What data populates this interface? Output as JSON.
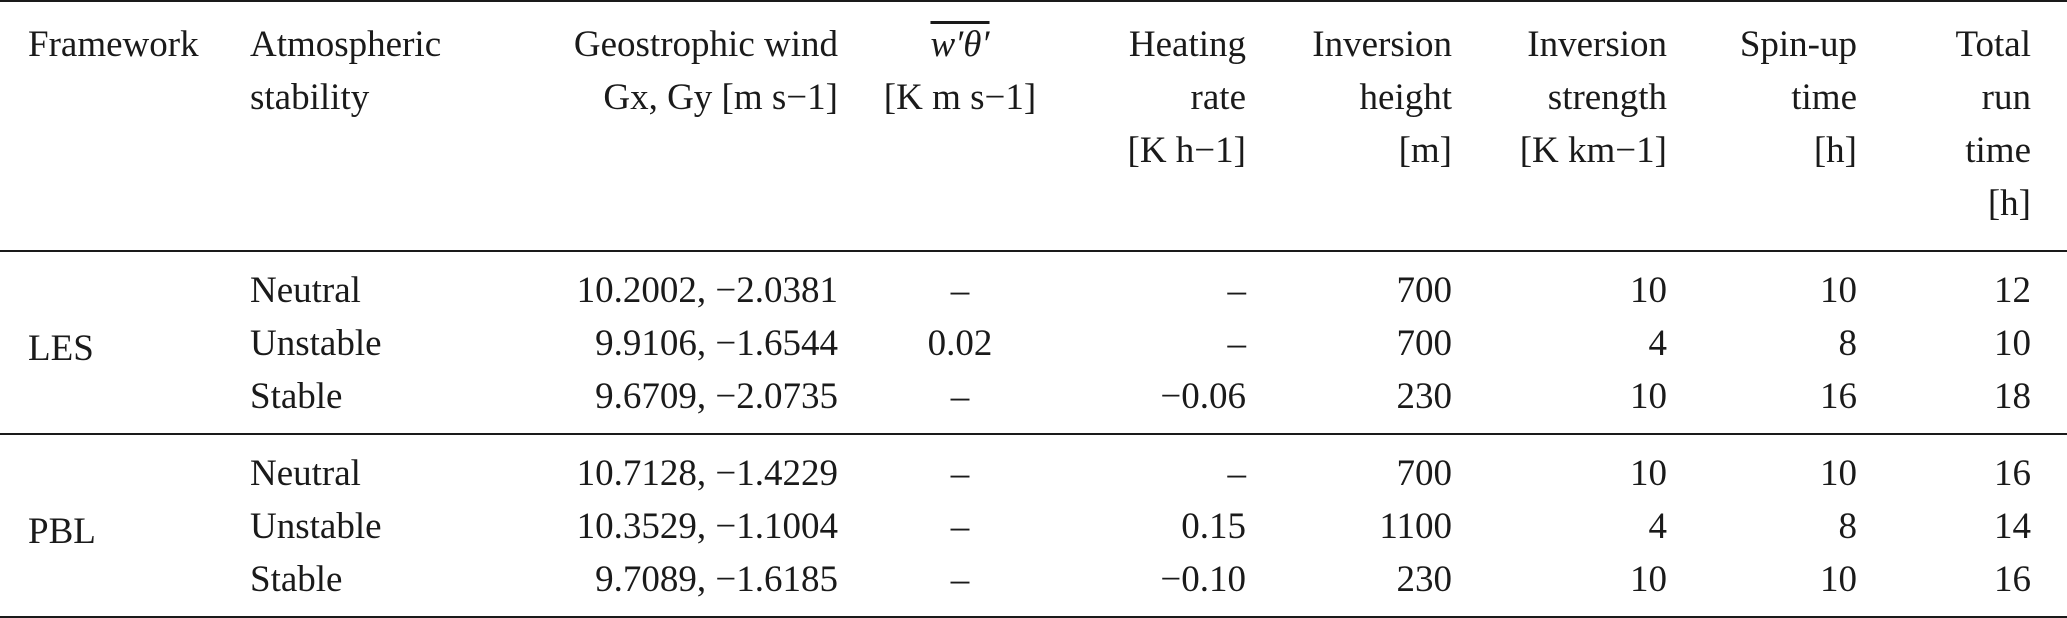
{
  "table": {
    "headers": [
      {
        "key": "framework",
        "lines": [
          "Framework"
        ]
      },
      {
        "key": "stability",
        "lines": [
          "Atmospheric",
          "stability"
        ]
      },
      {
        "key": "geostrophic_wind",
        "lines": [
          "Geostrophic wind",
          "Gx, Gy [m s−1]"
        ]
      },
      {
        "key": "heat_flux",
        "lines": [
          "w′θ′",
          "[K m s−1]"
        ]
      },
      {
        "key": "heating_rate",
        "lines": [
          "Heating",
          "rate",
          "[K h−1]"
        ]
      },
      {
        "key": "inversion_height",
        "lines": [
          "Inversion",
          "height",
          "[m]"
        ]
      },
      {
        "key": "inversion_strength",
        "lines": [
          "Inversion",
          "strength",
          "[K km−1]"
        ]
      },
      {
        "key": "spinup_time",
        "lines": [
          "Spin-up",
          "time",
          "[h]"
        ]
      },
      {
        "key": "total_run_time",
        "lines": [
          "Total",
          "run",
          "time",
          "[h]"
        ]
      }
    ],
    "groups": [
      {
        "framework": "LES",
        "rows": [
          {
            "stability": "Neutral",
            "geostrophic_wind": "10.2002, −2.0381",
            "heat_flux": "–",
            "heating_rate": "–",
            "inversion_height": "700",
            "inversion_strength": "10",
            "spinup_time": "10",
            "total_run_time": "12"
          },
          {
            "stability": "Unstable",
            "geostrophic_wind": "9.9106, −1.6544",
            "heat_flux": "0.02",
            "heating_rate": "–",
            "inversion_height": "700",
            "inversion_strength": "4",
            "spinup_time": "8",
            "total_run_time": "10"
          },
          {
            "stability": "Stable",
            "geostrophic_wind": "9.6709, −2.0735",
            "heat_flux": "–",
            "heating_rate": "−0.06",
            "inversion_height": "230",
            "inversion_strength": "10",
            "spinup_time": "16",
            "total_run_time": "18"
          }
        ]
      },
      {
        "framework": "PBL",
        "rows": [
          {
            "stability": "Neutral",
            "geostrophic_wind": "10.7128, −1.4229",
            "heat_flux": "–",
            "heating_rate": "–",
            "inversion_height": "700",
            "inversion_strength": "10",
            "spinup_time": "10",
            "total_run_time": "16"
          },
          {
            "stability": "Unstable",
            "geostrophic_wind": "10.3529, −1.1004",
            "heat_flux": "–",
            "heating_rate": "0.15",
            "inversion_height": "1100",
            "inversion_strength": "4",
            "spinup_time": "8",
            "total_run_time": "14"
          },
          {
            "stability": "Stable",
            "geostrophic_wind": "9.7089, −1.6185",
            "heat_flux": "–",
            "heating_rate": "−0.10",
            "inversion_height": "230",
            "inversion_strength": "10",
            "spinup_time": "10",
            "total_run_time": "16"
          }
        ]
      }
    ]
  }
}
